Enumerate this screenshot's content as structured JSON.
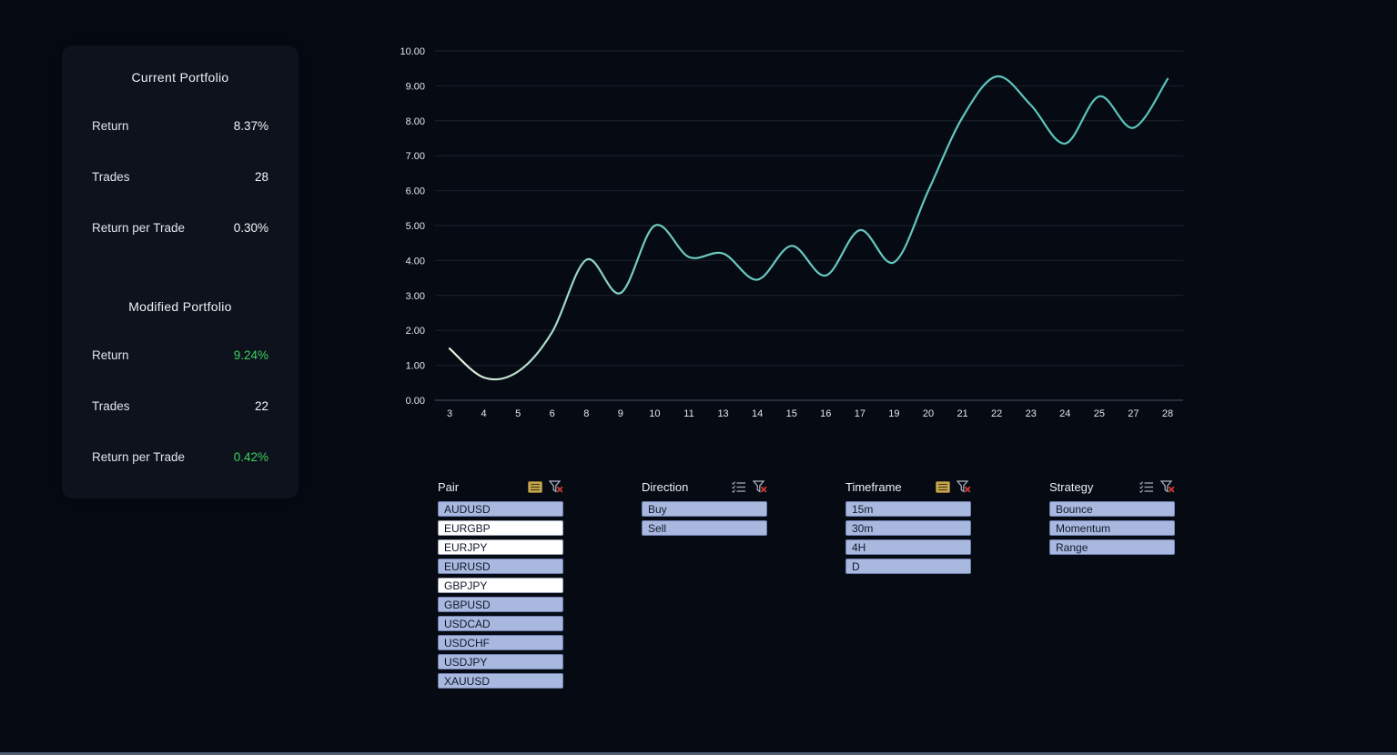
{
  "colors": {
    "background": "#060a13",
    "card_background": "#0d121c",
    "accent_green": "#3dd25e",
    "line_gradient": [
      "#eef3e1",
      "#b9e0cd",
      "#6ecac0",
      "#57c3be"
    ],
    "slicer_selected_bg": "#a9b8de",
    "slicer_unselected_bg": "#ffffff",
    "gold_icon": "#c9a952",
    "clear_icon_x": "#d23b2f",
    "grid_line": "rgba(150,160,180,0.16)",
    "axis_line": "rgba(160,170,190,0.45)",
    "axis_text": "#e2e6ee"
  },
  "portfolio": {
    "current": {
      "title": "Current Portfolio",
      "rows": [
        {
          "label": "Return",
          "value": "8.37%",
          "accent": false
        },
        {
          "label": "Trades",
          "value": "28",
          "accent": false
        },
        {
          "label": "Return per Trade",
          "value": "0.30%",
          "accent": false
        }
      ]
    },
    "modified": {
      "title": "Modified Portfolio",
      "rows": [
        {
          "label": "Return",
          "value": "9.24%",
          "accent": true
        },
        {
          "label": "Trades",
          "value": "22",
          "accent": false
        },
        {
          "label": "Return per Trade",
          "value": "0.42%",
          "accent": true
        }
      ]
    }
  },
  "chart_data": {
    "type": "line",
    "title": "",
    "xlabel": "",
    "ylabel": "",
    "x": [
      3,
      4,
      5,
      6,
      8,
      9,
      10,
      11,
      13,
      14,
      15,
      16,
      17,
      19,
      20,
      21,
      22,
      23,
      24,
      25,
      27,
      28
    ],
    "values": [
      1.48,
      0.65,
      0.82,
      1.95,
      4.02,
      3.07,
      5.0,
      4.1,
      4.2,
      3.45,
      4.42,
      3.57,
      4.87,
      3.95,
      6.0,
      8.1,
      9.27,
      8.45,
      7.35,
      8.7,
      7.8,
      9.2
    ],
    "ylim": [
      0,
      10
    ],
    "ytick_step": 1,
    "ytick_decimals": 2,
    "grid": true,
    "legend": "none"
  },
  "slicers": [
    {
      "title": "Pair",
      "list_icon_style": "gold",
      "icons": [
        "checklist-icon",
        "clear-filter-icon"
      ],
      "items": [
        {
          "label": "AUDUSD",
          "selected": true
        },
        {
          "label": "EURGBP",
          "selected": false
        },
        {
          "label": "EURJPY",
          "selected": false
        },
        {
          "label": "EURUSD",
          "selected": true
        },
        {
          "label": "GBPJPY",
          "selected": false
        },
        {
          "label": "GBPUSD",
          "selected": true
        },
        {
          "label": "USDCAD",
          "selected": true
        },
        {
          "label": "USDCHF",
          "selected": true
        },
        {
          "label": "USDJPY",
          "selected": true
        },
        {
          "label": "XAUUSD",
          "selected": true
        }
      ]
    },
    {
      "title": "Direction",
      "list_icon_style": "gray",
      "icons": [
        "checklist-icon",
        "clear-filter-icon"
      ],
      "items": [
        {
          "label": "Buy",
          "selected": true
        },
        {
          "label": "Sell",
          "selected": true
        }
      ]
    },
    {
      "title": "Timeframe",
      "list_icon_style": "gold",
      "icons": [
        "checklist-icon",
        "clear-filter-icon"
      ],
      "items": [
        {
          "label": "15m",
          "selected": true
        },
        {
          "label": "30m",
          "selected": true
        },
        {
          "label": "4H",
          "selected": true
        },
        {
          "label": "D",
          "selected": true
        }
      ]
    },
    {
      "title": "Strategy",
      "list_icon_style": "gray",
      "icons": [
        "checklist-icon",
        "clear-filter-icon"
      ],
      "items": [
        {
          "label": "Bounce",
          "selected": true
        },
        {
          "label": "Momentum",
          "selected": true
        },
        {
          "label": "Range",
          "selected": true
        }
      ]
    }
  ]
}
